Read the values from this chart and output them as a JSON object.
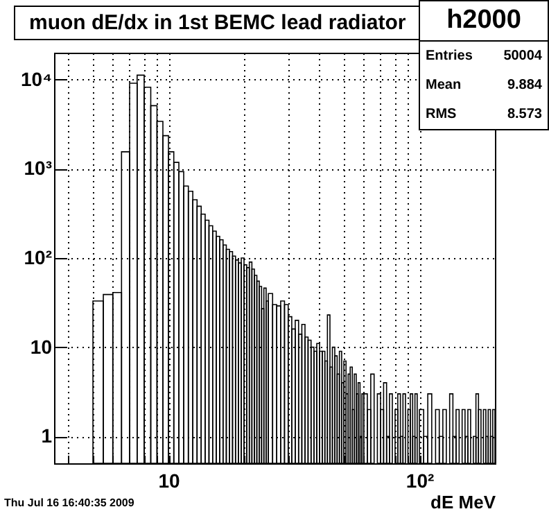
{
  "chart_data": {
    "type": "histogram",
    "title": "muon dE/dx in 1st BEMC lead radiator",
    "xlabel": "dE MeV",
    "color": "#000000",
    "log": "xy",
    "grid": true,
    "annotations": [
      "h2000",
      "Entries 50004",
      "Mean 9.884",
      "RMS 8.573",
      "Thu Jul 16 16:40:35 2009"
    ],
    "xlim": [
      3.5,
      200
    ],
    "ylim": [
      0.5,
      20000
    ],
    "xticks": [
      {
        "value": 4,
        "label": null
      },
      {
        "value": 5,
        "label": null
      },
      {
        "value": 6,
        "label": null
      },
      {
        "value": 7,
        "label": null
      },
      {
        "value": 8,
        "label": null
      },
      {
        "value": 9,
        "label": null
      },
      10,
      {
        "value": 20,
        "label": null
      },
      {
        "value": 30,
        "label": null
      },
      {
        "value": 40,
        "label": null
      },
      {
        "value": 50,
        "label": null
      },
      {
        "value": 60,
        "label": null
      },
      {
        "value": 70,
        "label": null
      },
      {
        "value": 80,
        "label": null
      },
      {
        "value": 90,
        "label": null
      },
      {
        "value": 100,
        "label": "10²"
      }
    ],
    "yticks": [
      1,
      10,
      {
        "value": 100,
        "label": "10²"
      },
      {
        "value": 1000,
        "label": "10³"
      },
      {
        "value": 10000,
        "label": "10⁴"
      }
    ],
    "bins": [
      5,
      5.5,
      6,
      6.5,
      7,
      7.5,
      8,
      8.5,
      9,
      9.5,
      10,
      10.5,
      11,
      11.5,
      12,
      12.5,
      13,
      13.5,
      14,
      14.5,
      15,
      15.5,
      16,
      16.5,
      17,
      17.5,
      18,
      18.5,
      19,
      19.5,
      20,
      20.5,
      21,
      21.5,
      22,
      22.5,
      23,
      23.5,
      24,
      24.5,
      25,
      26,
      27,
      28,
      29,
      30,
      31,
      32,
      33,
      34,
      35,
      36,
      37,
      38,
      39,
      40,
      41,
      42,
      43,
      44,
      45,
      46,
      47,
      48,
      49,
      50,
      51,
      52,
      53,
      54,
      55,
      56,
      57,
      58,
      59,
      60,
      62,
      64,
      66,
      68,
      70,
      72,
      74,
      76,
      78,
      80,
      82,
      84,
      86,
      88,
      90,
      92,
      94,
      96,
      98,
      100,
      104,
      108,
      112,
      116,
      120,
      124,
      128,
      132,
      136,
      140,
      144,
      148,
      152,
      156,
      160,
      164,
      168,
      172,
      176,
      180,
      184,
      188,
      192,
      196,
      200
    ],
    "values": [
      33,
      39,
      41,
      1550,
      9100,
      11200,
      8200,
      5100,
      3400,
      2350,
      1550,
      1180,
      930,
      640,
      560,
      450,
      380,
      310,
      265,
      230,
      200,
      175,
      160,
      140,
      125,
      118,
      105,
      95,
      88,
      100,
      84,
      78,
      90,
      75,
      64,
      55,
      48,
      27,
      46,
      33,
      40,
      30,
      29,
      33,
      30,
      22,
      16,
      20,
      14,
      18,
      13,
      12,
      10,
      9,
      11,
      9,
      9,
      7,
      23,
      6,
      10,
      8,
      5,
      9,
      4,
      7,
      3,
      5,
      6,
      2,
      5,
      3,
      4,
      1,
      3,
      3,
      2,
      5,
      null,
      3,
      2,
      4,
      1,
      3,
      null,
      2,
      3,
      1,
      3,
      null,
      2,
      3,
      1,
      3,
      null,
      2,
      1,
      3,
      null,
      2,
      1,
      2,
      null,
      3,
      1,
      2,
      null,
      2,
      1,
      2,
      null,
      1,
      3,
      2,
      null,
      2,
      1,
      2,
      1,
      2
    ]
  }
}
